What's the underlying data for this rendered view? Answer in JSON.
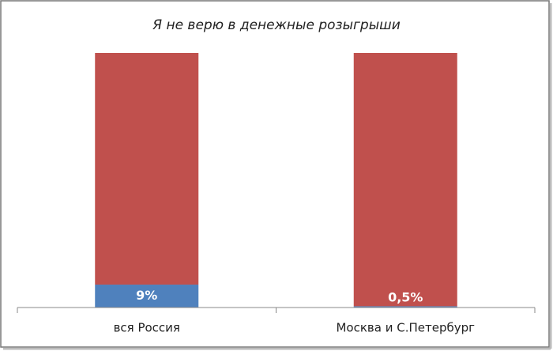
{
  "chart_data": {
    "type": "stacked-bar",
    "title": "Я не верю в денежные розыгрыши",
    "categories": [
      "вся Россия",
      "Москва и С.Петербург"
    ],
    "series": [
      {
        "color": "#4f81bd",
        "values": [
          9,
          0.5
        ],
        "value_labels": [
          "9%",
          "0,5%"
        ]
      },
      {
        "color": "#c0504d",
        "values": [
          91,
          99.5
        ]
      }
    ],
    "ylim": [
      0,
      100
    ]
  }
}
